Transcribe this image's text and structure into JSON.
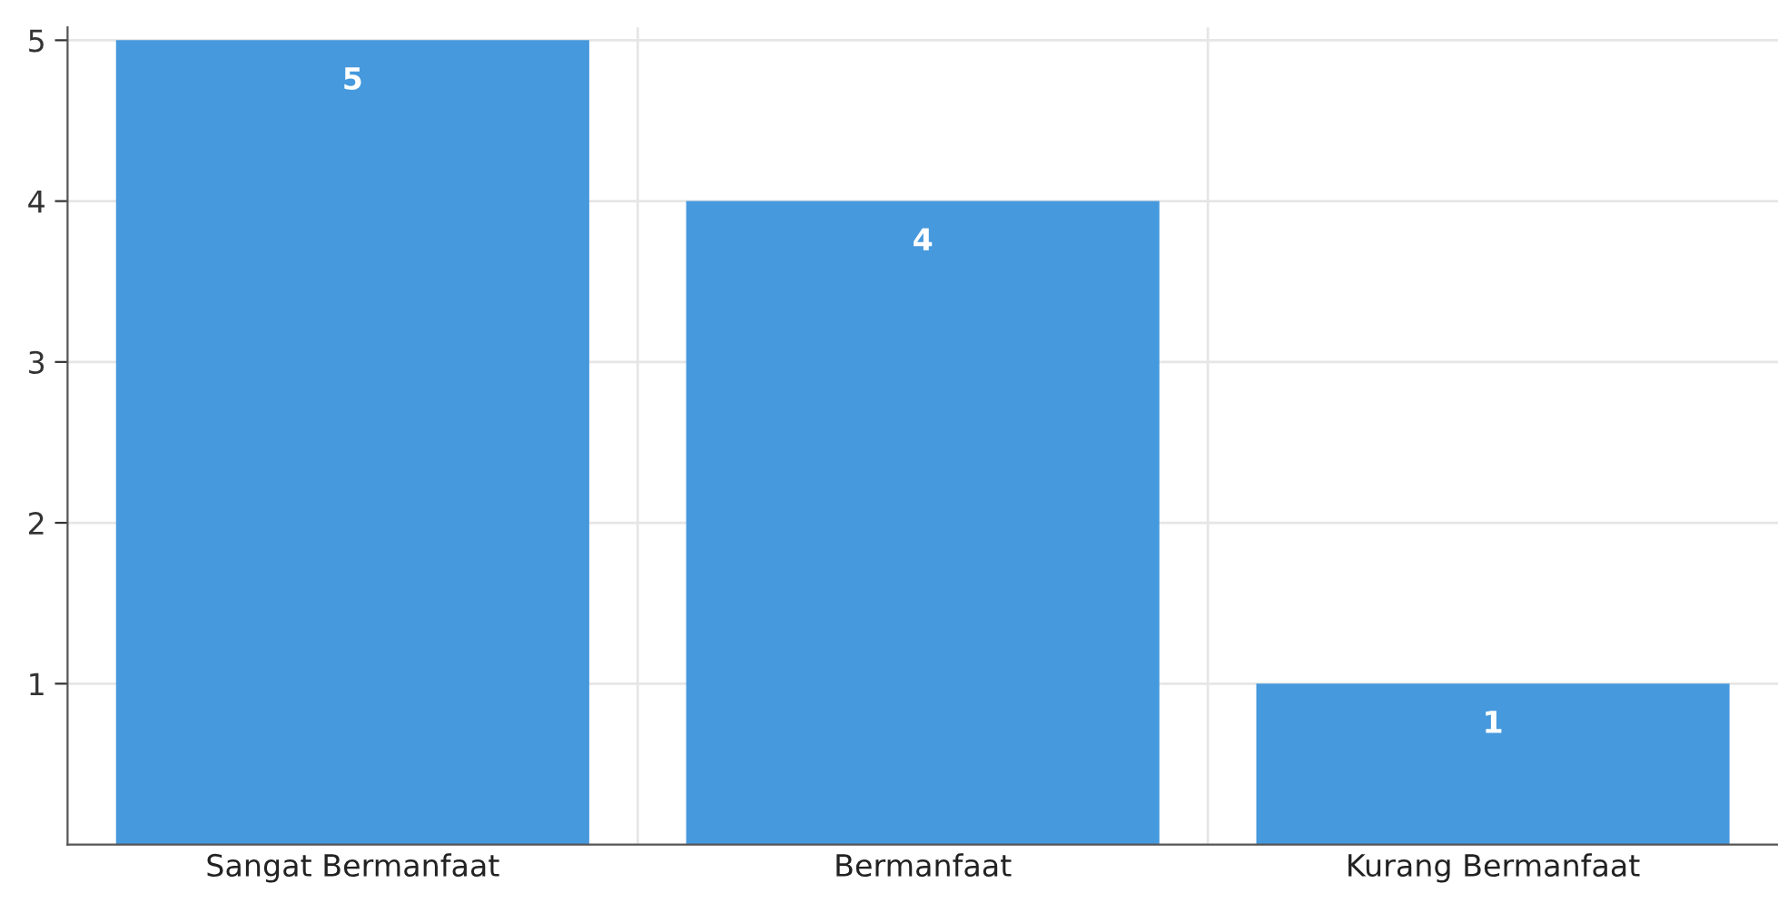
{
  "chart_data": {
    "type": "bar",
    "categories": [
      "Sangat Bermanfaat",
      "Bermanfaat",
      "Kurang Bermanfaat"
    ],
    "values": [
      5,
      4,
      1
    ],
    "color": "#4699dd",
    "ylim": [
      0,
      5.08
    ],
    "yticks": [
      1,
      2,
      3,
      4,
      5
    ],
    "grid": true,
    "data_labels": true
  }
}
